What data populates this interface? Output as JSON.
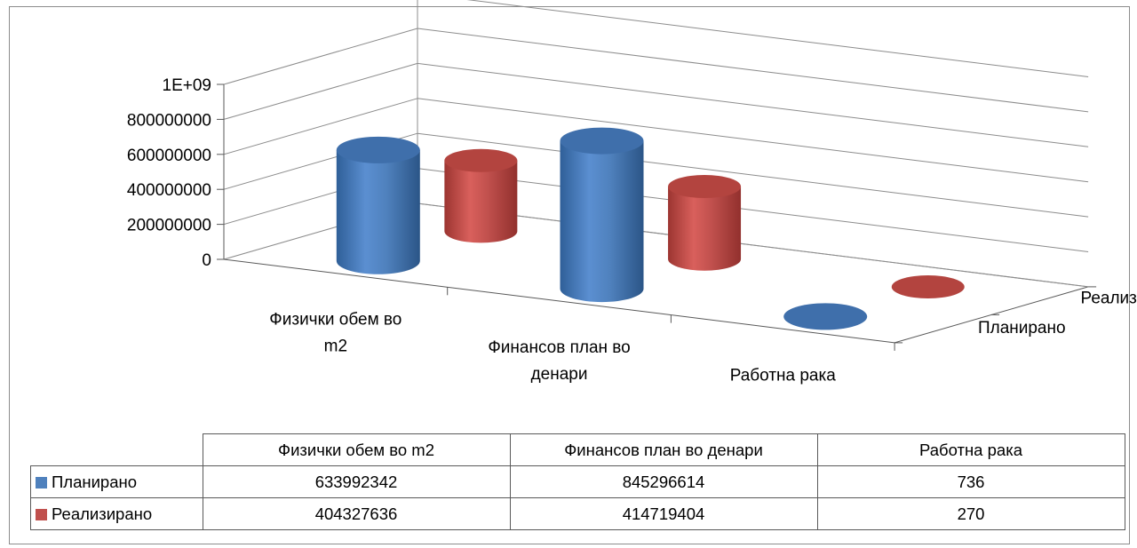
{
  "chart_data": {
    "type": "bar",
    "style": "3d-cylinder",
    "categories": [
      "Физички обем во m2",
      "Финансов план во денари",
      "Работна рака"
    ],
    "category_tick_labels": [
      [
        "Физички обем во",
        "m2"
      ],
      [
        "Финансов план во",
        "денари"
      ],
      [
        "Работна рака"
      ]
    ],
    "series": [
      {
        "name": "Планирано",
        "values": [
          633992342,
          845296614,
          736
        ],
        "color": "#4f81bd"
      },
      {
        "name": "Реализирано",
        "values": [
          404327636,
          414719404,
          270
        ],
        "color": "#c0504d"
      }
    ],
    "y_ticks": [
      "0",
      "200000000",
      "400000000",
      "600000000",
      "800000000",
      "1E+09"
    ],
    "ylim": [
      0,
      1000000000
    ],
    "grid": true,
    "legend": "data-table",
    "data_table": {
      "columns": [
        "Физички обем во m2",
        "Финансов план во денари",
        "Работна рака"
      ],
      "rows": [
        {
          "label": "Планирано",
          "cells": [
            "633992342",
            "845296614",
            "736"
          ]
        },
        {
          "label": "Реализирано",
          "cells": [
            "404327636",
            "414719404",
            "270"
          ]
        }
      ]
    }
  }
}
